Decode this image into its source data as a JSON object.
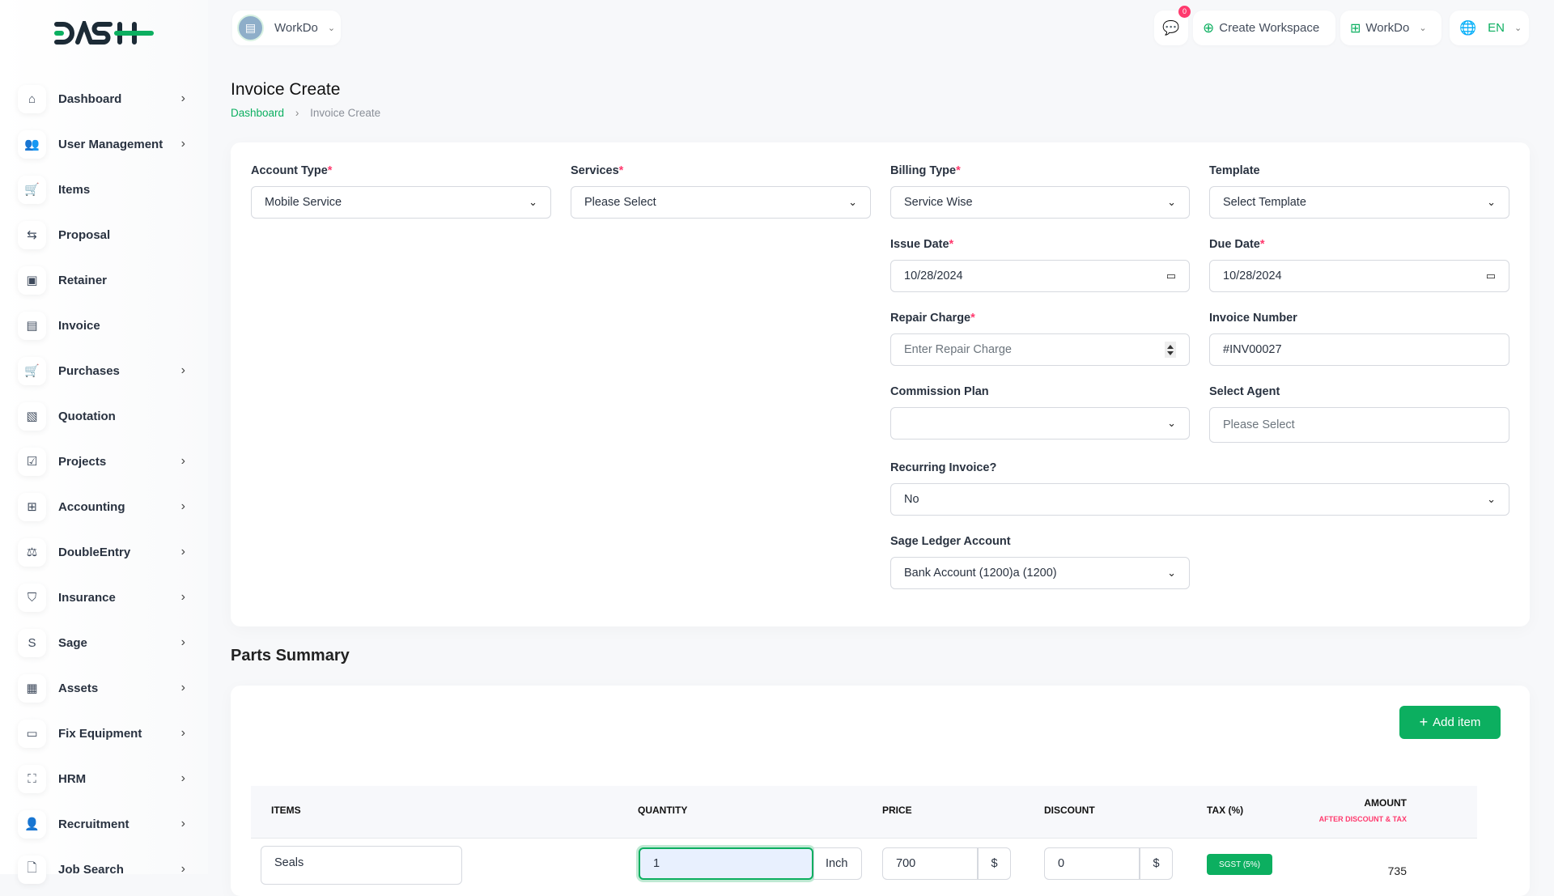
{
  "brand": {
    "logo_text": "DASH"
  },
  "header": {
    "workspace_name": "WorkDo",
    "notifications_count": "0",
    "create_workspace_label": "Create Workspace",
    "workspace_switch_label": "WorkDo",
    "language": "EN"
  },
  "sidebar": {
    "items": [
      {
        "label": "Dashboard",
        "icon": "home-icon",
        "glyph": "⌂",
        "chevron": true
      },
      {
        "label": "User Management",
        "icon": "users-icon",
        "glyph": "👥",
        "chevron": true
      },
      {
        "label": "Items",
        "icon": "cart-icon",
        "glyph": "🛒",
        "chevron": false
      },
      {
        "label": "Proposal",
        "icon": "swap-icon",
        "glyph": "⇆",
        "chevron": false
      },
      {
        "label": "Retainer",
        "icon": "save-icon",
        "glyph": "▣",
        "chevron": false
      },
      {
        "label": "Invoice",
        "icon": "file-invoice-icon",
        "glyph": "▤",
        "chevron": false
      },
      {
        "label": "Purchases",
        "icon": "cart-icon",
        "glyph": "🛒",
        "chevron": true
      },
      {
        "label": "Quotation",
        "icon": "file-check-icon",
        "glyph": "▧",
        "chevron": false
      },
      {
        "label": "Projects",
        "icon": "checkbox-icon",
        "glyph": "☑",
        "chevron": true
      },
      {
        "label": "Accounting",
        "icon": "apps-icon",
        "glyph": "⊞",
        "chevron": true
      },
      {
        "label": "DoubleEntry",
        "icon": "scale-icon",
        "glyph": "⚖",
        "chevron": true
      },
      {
        "label": "Insurance",
        "icon": "shield-check-icon",
        "glyph": "⛉",
        "chevron": true
      },
      {
        "label": "Sage",
        "icon": "letter-s-icon",
        "glyph": "S",
        "chevron": true
      },
      {
        "label": "Assets",
        "icon": "calculator-icon",
        "glyph": "▦",
        "chevron": true
      },
      {
        "label": "Fix Equipment",
        "icon": "archive-icon",
        "glyph": "▭",
        "chevron": true
      },
      {
        "label": "HRM",
        "icon": "focus-icon",
        "glyph": "⛶",
        "chevron": true
      },
      {
        "label": "Recruitment",
        "icon": "user-plus-icon",
        "glyph": "👤",
        "chevron": true
      },
      {
        "label": "Job Search",
        "icon": "file-search-icon",
        "glyph": "🗋",
        "chevron": true
      }
    ]
  },
  "page": {
    "title": "Invoice Create",
    "breadcrumb": [
      "Dashboard",
      "Invoice Create"
    ]
  },
  "form": {
    "account_type": {
      "label": "Account Type",
      "value": "Mobile Service"
    },
    "services": {
      "label": "Services",
      "value": "Please Select"
    },
    "billing_type": {
      "label": "Billing Type",
      "value": "Service Wise"
    },
    "template": {
      "label": "Template",
      "value": "Select Template"
    },
    "issue_date": {
      "label": "Issue Date",
      "value": "10/28/2024"
    },
    "due_date": {
      "label": "Due Date",
      "value": "10/28/2024"
    },
    "repair_charge": {
      "label": "Repair Charge",
      "placeholder": "Enter Repair Charge"
    },
    "invoice_number": {
      "label": "Invoice Number",
      "value": "#INV00027"
    },
    "commission_plan": {
      "label": "Commission Plan",
      "value": ""
    },
    "select_agent": {
      "label": "Select Agent",
      "placeholder": "Please Select"
    },
    "recurring": {
      "label": "Recurring Invoice?",
      "value": "No"
    },
    "sage_ledger": {
      "label": "Sage Ledger Account",
      "value": "Bank Account (1200)a (1200)"
    }
  },
  "parts": {
    "title": "Parts Summary",
    "add_item_label": "Add item",
    "columns": {
      "items": "ITEMS",
      "quantity": "QUANTITY",
      "price": "PRICE",
      "discount": "DISCOUNT",
      "tax": "TAX (%)",
      "amount": "AMOUNT",
      "amount_sub": "AFTER DISCOUNT & TAX"
    },
    "rows": [
      {
        "item": "Seals",
        "quantity": "1",
        "unit": "Inch",
        "price": "700",
        "currency": "$",
        "discount": "0",
        "discount_currency": "$",
        "tax": "SGST (5%)",
        "amount": "735"
      }
    ]
  },
  "colors": {
    "accent": "#0caf60",
    "danger": "#ff3a6e"
  }
}
